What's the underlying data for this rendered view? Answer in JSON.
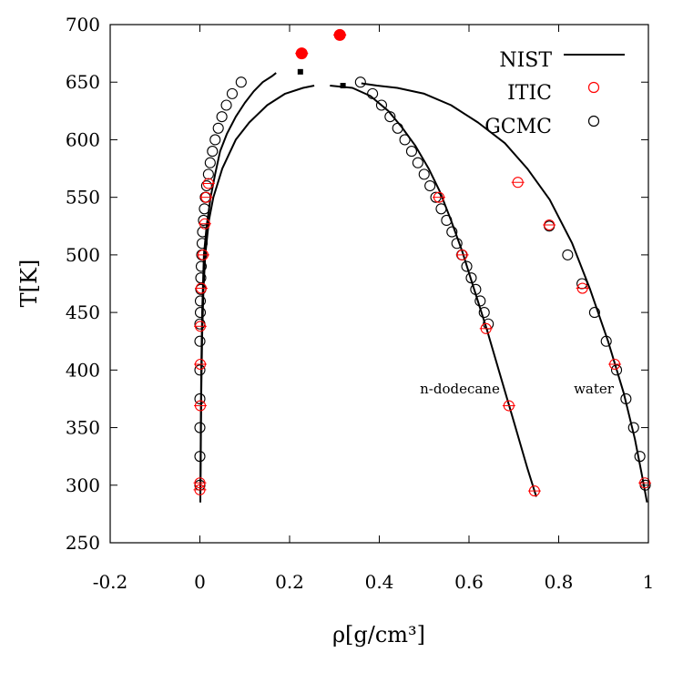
{
  "chart_data": {
    "type": "scatter",
    "xlabel": "ρ[g/cm³]",
    "ylabel": "T[K]",
    "xlim": [
      -0.2,
      1.0
    ],
    "ylim": [
      250,
      700
    ],
    "xticks": [
      -0.2,
      0,
      0.2,
      0.4,
      0.6,
      0.8,
      1
    ],
    "xtick_labels": [
      "-0.2",
      "0",
      "0.2",
      "0.4",
      "0.6",
      "0.8",
      "1"
    ],
    "yticks": [
      250,
      300,
      350,
      400,
      450,
      500,
      550,
      600,
      650,
      700
    ],
    "ytick_labels": [
      "250",
      "300",
      "350",
      "400",
      "450",
      "500",
      "550",
      "600",
      "650",
      "700"
    ],
    "legend": {
      "placement": "top-right",
      "entries": [
        {
          "label": "NIST",
          "style": "line",
          "color": "#000000"
        },
        {
          "label": "ITIC",
          "style": "open-circle",
          "color": "#ff0000"
        },
        {
          "label": "GCMC",
          "style": "open-circle",
          "color": "#000000"
        }
      ]
    },
    "annotations": [
      {
        "text": "n-dodecane",
        "x": 0.53,
        "y": 380
      },
      {
        "text": "water",
        "x": 0.875,
        "y": 380
      }
    ],
    "colors": {
      "itic": "#ff0000",
      "gcmc": "#000000",
      "nist": "#000000"
    },
    "nist_curves": [
      {
        "x": [
          0.001,
          0.002,
          0.003,
          0.005,
          0.009,
          0.015,
          0.024,
          0.034,
          0.045,
          0.06,
          0.08,
          0.1,
          0.12,
          0.14,
          0.16,
          0.17
        ],
        "y": [
          285,
          350,
          400,
          450,
          500,
          525,
          550,
          570,
          590,
          605,
          620,
          632,
          642,
          650,
          655,
          658
        ]
      },
      {
        "x": [
          0.36,
          0.395,
          0.44,
          0.5,
          0.56,
          0.62,
          0.68,
          0.73,
          0.78,
          0.83,
          0.87,
          0.91,
          0.945,
          0.97,
          0.985,
          0.997
        ],
        "y": [
          649,
          647,
          645,
          640,
          630,
          615,
          597,
          575,
          548,
          510,
          470,
          425,
          380,
          340,
          310,
          285
        ]
      },
      {
        "x": [
          0.001,
          0.002,
          0.003,
          0.005,
          0.008,
          0.012,
          0.02,
          0.03,
          0.05,
          0.08,
          0.11,
          0.15,
          0.19,
          0.23,
          0.255
        ],
        "y": [
          290,
          330,
          380,
          430,
          470,
          500,
          530,
          550,
          575,
          600,
          615,
          630,
          640,
          645,
          647
        ]
      },
      {
        "x": [
          0.29,
          0.34,
          0.38,
          0.42,
          0.45,
          0.48,
          0.51,
          0.535,
          0.56,
          0.585,
          0.61,
          0.64,
          0.67,
          0.7,
          0.73,
          0.75
        ],
        "y": [
          647,
          645,
          638,
          625,
          611,
          595,
          575,
          555,
          530,
          503,
          472,
          435,
          395,
          355,
          315,
          290
        ]
      }
    ],
    "itic_points": [
      {
        "x": 0.709,
        "y": 563
      },
      {
        "x": 0.779,
        "y": 526
      },
      {
        "x": 0.853,
        "y": 471
      },
      {
        "x": 0.925,
        "y": 405
      },
      {
        "x": 0.992,
        "y": 302
      },
      {
        "x": 0.533,
        "y": 550
      },
      {
        "x": 0.585,
        "y": 500
      },
      {
        "x": 0.638,
        "y": 436
      },
      {
        "x": 0.689,
        "y": 369
      },
      {
        "x": 0.746,
        "y": 295
      },
      {
        "x": 0.019,
        "y": 562
      },
      {
        "x": 0.014,
        "y": 550
      },
      {
        "x": 0.011,
        "y": 527
      },
      {
        "x": 0.007,
        "y": 500
      },
      {
        "x": 0.003,
        "y": 471
      },
      {
        "x": 0.001,
        "y": 438
      },
      {
        "x": 0.001,
        "y": 405
      },
      {
        "x": 0.001,
        "y": 369
      },
      {
        "x": 0.0,
        "y": 302
      },
      {
        "x": 0.0,
        "y": 296
      }
    ],
    "itic_critical_points": [
      {
        "x": 0.227,
        "y": 675
      },
      {
        "x": 0.312,
        "y": 691
      }
    ],
    "gcmc_points": [
      {
        "x": 0.0,
        "y": 300
      },
      {
        "x": 0.0,
        "y": 325
      },
      {
        "x": 0.0,
        "y": 350
      },
      {
        "x": 0.0,
        "y": 375
      },
      {
        "x": 0.0,
        "y": 400
      },
      {
        "x": 0.0,
        "y": 425
      },
      {
        "x": 0.0,
        "y": 440
      },
      {
        "x": 0.001,
        "y": 450
      },
      {
        "x": 0.001,
        "y": 460
      },
      {
        "x": 0.002,
        "y": 470
      },
      {
        "x": 0.002,
        "y": 480
      },
      {
        "x": 0.003,
        "y": 490
      },
      {
        "x": 0.004,
        "y": 500
      },
      {
        "x": 0.005,
        "y": 510
      },
      {
        "x": 0.006,
        "y": 520
      },
      {
        "x": 0.008,
        "y": 530
      },
      {
        "x": 0.01,
        "y": 540
      },
      {
        "x": 0.012,
        "y": 550
      },
      {
        "x": 0.015,
        "y": 560
      },
      {
        "x": 0.019,
        "y": 570
      },
      {
        "x": 0.023,
        "y": 580
      },
      {
        "x": 0.028,
        "y": 590
      },
      {
        "x": 0.034,
        "y": 600
      },
      {
        "x": 0.041,
        "y": 610
      },
      {
        "x": 0.049,
        "y": 620
      },
      {
        "x": 0.059,
        "y": 630
      },
      {
        "x": 0.072,
        "y": 640
      },
      {
        "x": 0.092,
        "y": 650
      },
      {
        "x": 0.358,
        "y": 650
      },
      {
        "x": 0.385,
        "y": 640
      },
      {
        "x": 0.405,
        "y": 630
      },
      {
        "x": 0.424,
        "y": 620
      },
      {
        "x": 0.441,
        "y": 610
      },
      {
        "x": 0.457,
        "y": 600
      },
      {
        "x": 0.472,
        "y": 590
      },
      {
        "x": 0.486,
        "y": 580
      },
      {
        "x": 0.5,
        "y": 570
      },
      {
        "x": 0.513,
        "y": 560
      },
      {
        "x": 0.526,
        "y": 550
      },
      {
        "x": 0.538,
        "y": 540
      },
      {
        "x": 0.55,
        "y": 530
      },
      {
        "x": 0.562,
        "y": 520
      },
      {
        "x": 0.573,
        "y": 510
      },
      {
        "x": 0.584,
        "y": 500
      },
      {
        "x": 0.595,
        "y": 490
      },
      {
        "x": 0.605,
        "y": 480
      },
      {
        "x": 0.615,
        "y": 470
      },
      {
        "x": 0.625,
        "y": 460
      },
      {
        "x": 0.634,
        "y": 450
      },
      {
        "x": 0.643,
        "y": 440
      },
      {
        "x": 0.779,
        "y": 525
      },
      {
        "x": 0.82,
        "y": 500
      },
      {
        "x": 0.852,
        "y": 475
      },
      {
        "x": 0.88,
        "y": 450
      },
      {
        "x": 0.906,
        "y": 425
      },
      {
        "x": 0.929,
        "y": 400
      },
      {
        "x": 0.95,
        "y": 375
      },
      {
        "x": 0.967,
        "y": 350
      },
      {
        "x": 0.981,
        "y": 325
      },
      {
        "x": 0.993,
        "y": 300
      }
    ],
    "gcmc_critical_points": [
      {
        "x": 0.224,
        "y": 659
      },
      {
        "x": 0.319,
        "y": 647
      }
    ]
  }
}
